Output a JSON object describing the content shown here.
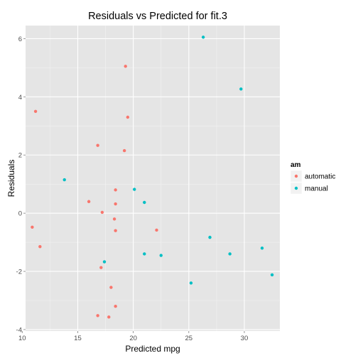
{
  "chart_data": {
    "type": "scatter",
    "title": "Residuals vs Predicted for fit.3",
    "xlabel": "Predicted mpg",
    "ylabel": "Residuals",
    "xlim": [
      10.3,
      33.2
    ],
    "ylim": [
      -4.05,
      6.45
    ],
    "x_ticks": [
      10,
      15,
      20,
      25,
      30
    ],
    "y_ticks": [
      -4,
      -2,
      0,
      2,
      4,
      6
    ],
    "grid": true,
    "legend_position": "right",
    "legend_title": "am",
    "series": [
      {
        "name": "automatic",
        "color": "#F8766D",
        "points": [
          [
            19.3,
            5.05
          ],
          [
            11.2,
            3.5
          ],
          [
            19.5,
            3.3
          ],
          [
            16.8,
            2.33
          ],
          [
            19.2,
            2.15
          ],
          [
            18.4,
            0.8
          ],
          [
            16.0,
            0.4
          ],
          [
            18.4,
            0.32
          ],
          [
            17.2,
            0.03
          ],
          [
            18.3,
            -0.2
          ],
          [
            10.9,
            -0.48
          ],
          [
            18.4,
            -0.6
          ],
          [
            22.1,
            -0.58
          ],
          [
            11.6,
            -1.15
          ],
          [
            17.1,
            -1.87
          ],
          [
            18.0,
            -2.55
          ],
          [
            18.4,
            -3.2
          ],
          [
            16.8,
            -3.52
          ],
          [
            17.8,
            -3.57
          ]
        ]
      },
      {
        "name": "manual",
        "color": "#00BFC4",
        "points": [
          [
            26.3,
            6.05
          ],
          [
            29.7,
            4.27
          ],
          [
            13.8,
            1.15
          ],
          [
            20.1,
            0.82
          ],
          [
            21.0,
            0.37
          ],
          [
            26.9,
            -0.83
          ],
          [
            21.0,
            -1.4
          ],
          [
            22.5,
            -1.45
          ],
          [
            28.7,
            -1.4
          ],
          [
            31.6,
            -1.2
          ],
          [
            17.4,
            -1.67
          ],
          [
            32.5,
            -2.12
          ],
          [
            25.2,
            -2.4
          ]
        ]
      }
    ]
  }
}
